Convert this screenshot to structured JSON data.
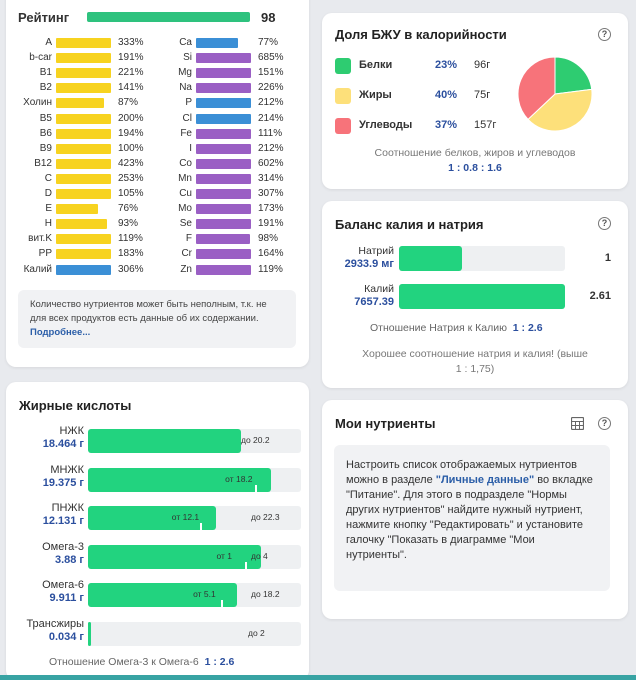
{
  "rating": {
    "label": "Рейтинг",
    "value": "98"
  },
  "nutrients_left": [
    {
      "name": "A",
      "pct": "333%",
      "fill": 0.95
    },
    {
      "name": "b-car",
      "pct": "191%",
      "fill": 0.95
    },
    {
      "name": "B1",
      "pct": "221%",
      "fill": 0.95
    },
    {
      "name": "B2",
      "pct": "141%",
      "fill": 0.95
    },
    {
      "name": "Холин",
      "pct": "87%",
      "fill": 0.82
    },
    {
      "name": "B5",
      "pct": "200%",
      "fill": 0.95
    },
    {
      "name": "B6",
      "pct": "194%",
      "fill": 0.95
    },
    {
      "name": "B9",
      "pct": "100%",
      "fill": 0.95
    },
    {
      "name": "B12",
      "pct": "423%",
      "fill": 0.95
    },
    {
      "name": "C",
      "pct": "253%",
      "fill": 0.95
    },
    {
      "name": "D",
      "pct": "105%",
      "fill": 0.95
    },
    {
      "name": "E",
      "pct": "76%",
      "fill": 0.72
    },
    {
      "name": "H",
      "pct": "93%",
      "fill": 0.88
    },
    {
      "name": "вит.K",
      "pct": "119%",
      "fill": 0.95
    },
    {
      "name": "PP",
      "pct": "183%",
      "fill": 0.95
    },
    {
      "name": "Калий",
      "pct": "306%",
      "fill": 0.95
    }
  ],
  "nutrients_right": [
    {
      "name": "Ca",
      "pct": "77%",
      "fill": 0.73
    },
    {
      "name": "Si",
      "pct": "685%",
      "fill": 0.95
    },
    {
      "name": "Mg",
      "pct": "151%",
      "fill": 0.95
    },
    {
      "name": "Na",
      "pct": "226%",
      "fill": 0.95
    },
    {
      "name": "P",
      "pct": "212%",
      "fill": 0.95
    },
    {
      "name": "Cl",
      "pct": "214%",
      "fill": 0.95
    },
    {
      "name": "Fe",
      "pct": "111%",
      "fill": 0.95
    },
    {
      "name": "I",
      "pct": "212%",
      "fill": 0.95
    },
    {
      "name": "Co",
      "pct": "602%",
      "fill": 0.95
    },
    {
      "name": "Mn",
      "pct": "314%",
      "fill": 0.95
    },
    {
      "name": "Cu",
      "pct": "307%",
      "fill": 0.95
    },
    {
      "name": "Mo",
      "pct": "173%",
      "fill": 0.95
    },
    {
      "name": "Se",
      "pct": "191%",
      "fill": 0.95
    },
    {
      "name": "F",
      "pct": "98%",
      "fill": 0.93
    },
    {
      "name": "Cr",
      "pct": "164%",
      "fill": 0.95
    },
    {
      "name": "Zn",
      "pct": "119%",
      "fill": 0.95
    }
  ],
  "note": {
    "text": "Количество нутриентов может быть неполным, т.к. не для всех продуктов есть данные об их содержании. ",
    "link": "Подробнее..."
  },
  "fatty": {
    "title": "Жирные кислоты",
    "rows": [
      {
        "name": "НЖК",
        "value": "18.464 г",
        "fill": 0.72,
        "from": "",
        "to": "до 20.2"
      },
      {
        "name": "МНЖК",
        "value": "19.375 г",
        "fill": 0.86,
        "from": "от 18.2",
        "to": ""
      },
      {
        "name": "ПНЖК",
        "value": "12.131 г",
        "fill": 0.6,
        "from": "от 12.1",
        "to": "до 22.3"
      },
      {
        "name": "Омега-3",
        "value": "3.88 г",
        "fill": 0.81,
        "from": "от 1",
        "to": "до 4"
      },
      {
        "name": "Омега-6",
        "value": "9.911 г",
        "fill": 0.7,
        "from": "от 5.1",
        "to": "до 18.2"
      },
      {
        "name": "Трансжиры",
        "value": "0.034 г",
        "fill": 0.015,
        "from": "",
        "to": "до 2"
      }
    ],
    "ratio_label": "Отношение Омега-3 к Омега-6",
    "ratio_value": "1 : 2.6"
  },
  "bju": {
    "title": "Доля БЖУ в калорийности",
    "rows": [
      {
        "name": "Белки",
        "pct": "23%",
        "grams": "96г",
        "color": "#2ecc71"
      },
      {
        "name": "Жиры",
        "pct": "40%",
        "grams": "75г",
        "color": "#fde07a"
      },
      {
        "name": "Углеводы",
        "pct": "37%",
        "grams": "157г",
        "color": "#f7737a"
      }
    ],
    "shares": [
      23,
      40,
      37
    ],
    "caption": "Соотношение белков, жиров и углеводов",
    "ratio": "1 : 0.8 : 1.6"
  },
  "kna": {
    "title": "Баланс калия и натрия",
    "sodium_label": "Натрий",
    "sodium_value": "2933.9 мг",
    "sodium_num": "1",
    "sodium_fill": 0.38,
    "potassium_label": "Калий",
    "potassium_value": "7657.39",
    "potassium_num": "2.61",
    "potassium_fill": 1.0,
    "ratio_label": "Отношение Натрия к Калию",
    "ratio_value": "1 : 2.6",
    "good_text_1": "Хорошее соотношение натрия и калия! (выше",
    "good_text_2": "1 : 1,75)"
  },
  "my_nutrients": {
    "title": "Мои нутриенты",
    "text_a": "Настроить список отображаемых нутриентов можно в разделе ",
    "text_link": "\"Личные данные\"",
    "text_b": " во вкладке \"Питание\". Для этого в подразделе \"Нормы других нутриентов\" найдите нужный нутриент, нажмите кнопку \"Редактировать\" и установите галочку \"Показать в диаграмме \"Мои нутриенты\"."
  },
  "help_glyph": "?",
  "colors": {
    "yellow": "#f7d320",
    "blue": "#3b8fd6",
    "purple": "#9a5fc4",
    "green": "#22d37f"
  }
}
